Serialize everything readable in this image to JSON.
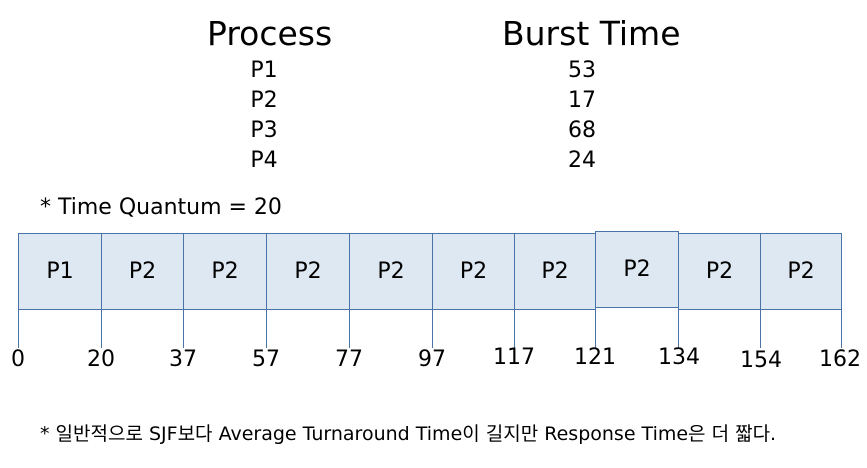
{
  "headers": {
    "process": "Process",
    "burst": "Burst Time"
  },
  "processes": [
    {
      "name": "P1",
      "burst": "53"
    },
    {
      "name": "P2",
      "burst": "17"
    },
    {
      "name": "P3",
      "burst": "68"
    },
    {
      "name": "P4",
      "burst": "24"
    }
  ],
  "quantum_label": "* Time Quantum = 20",
  "gantt": {
    "blocks": [
      "P1",
      "P2",
      "P2",
      "P2",
      "P2",
      "P2",
      "P2",
      "P2",
      "P2",
      "P2"
    ],
    "times": [
      "0",
      "20",
      "37",
      "57",
      "77",
      "97",
      "117",
      "121",
      "134",
      "154",
      "162"
    ]
  },
  "note": "* 일반적으로 SJF보다 Average Turnaround Time이 길지만 Response Time은 더 짧다."
}
